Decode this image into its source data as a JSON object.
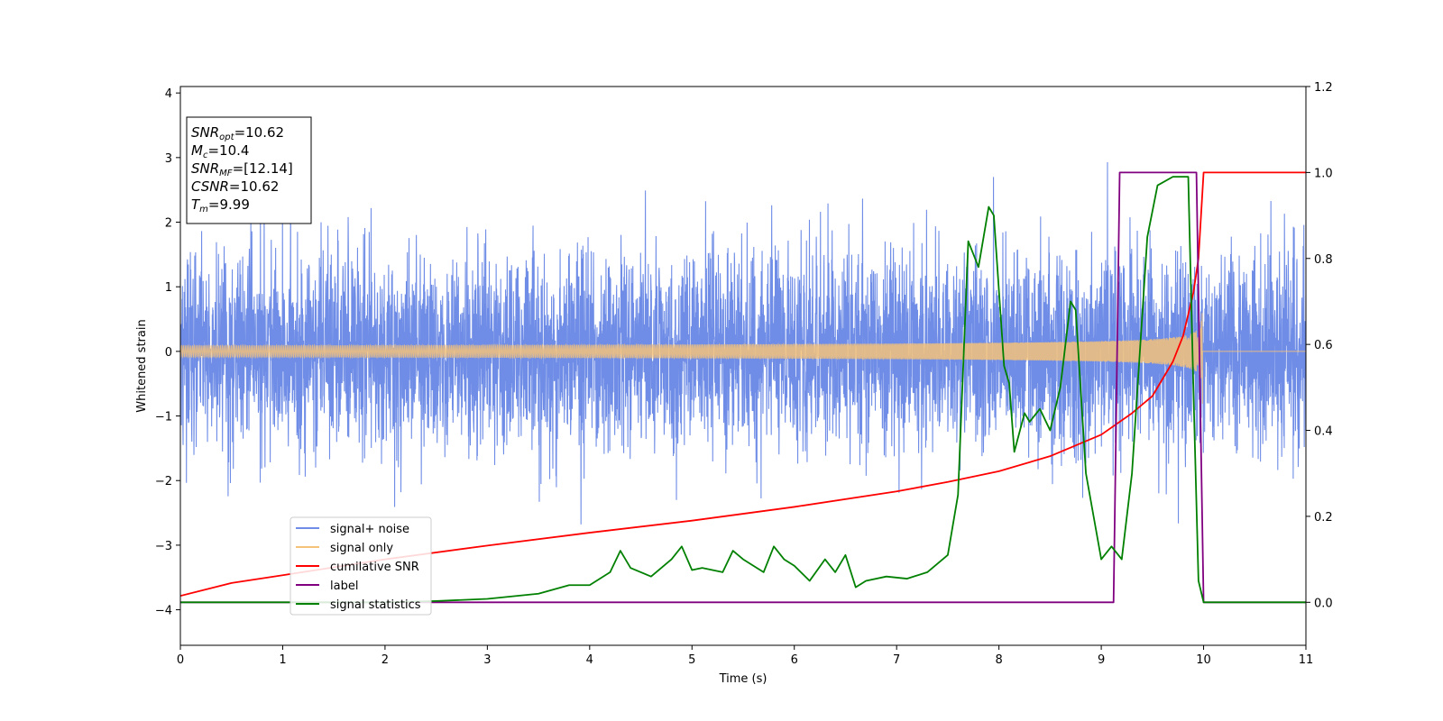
{
  "chart_data": {
    "type": "line",
    "title": "",
    "xlabel": "Time (s)",
    "ylabel": "Whitened strain",
    "y2label": "",
    "xlim": [
      0,
      11
    ],
    "ylim": [
      -4.55,
      4.1
    ],
    "y2lim": [
      -0.1,
      1.2
    ],
    "x_ticks": [
      0,
      1,
      2,
      3,
      4,
      5,
      6,
      7,
      8,
      9,
      10,
      11
    ],
    "y_ticks": [
      4,
      3,
      2,
      1,
      0,
      -1,
      -2,
      -3,
      -4
    ],
    "y_tick_labels": [
      "4",
      "3",
      "2",
      "1",
      "0",
      "−1",
      "−2",
      "−3",
      "−4"
    ],
    "y2_ticks": [
      1.2,
      1.0,
      0.8,
      0.6,
      0.4,
      0.2,
      0.0
    ],
    "y2_tick_labels": [
      "1.2",
      "1.0",
      "0.8",
      "0.6",
      "0.4",
      "0.2",
      "0.0"
    ],
    "grid": false,
    "legend_position": "lower-left",
    "info_box": {
      "lines": [
        {
          "sym": "SNR",
          "sub": "opt",
          "val": "=10.62"
        },
        {
          "sym": "M",
          "sub": "c",
          "val": "=10.4"
        },
        {
          "sym": "SNR",
          "sub": "MF",
          "val": "=[12.14]"
        },
        {
          "sym": "CSNR",
          "sub": "",
          "val": "=10.62"
        },
        {
          "sym": "T",
          "sub": "m",
          "val": "=9.99"
        }
      ]
    },
    "series": [
      {
        "name": "signal+ noise",
        "color": "#6f8de6",
        "axis": "left",
        "style": "noise",
        "sigma": 0.75,
        "range": [
          0,
          11
        ]
      },
      {
        "name": "signal only",
        "color": "#f5c27a",
        "axis": "left",
        "style": "chirp",
        "merger_time": 9.99,
        "peak_amplitude": 0.95
      },
      {
        "name": "cumilative SNR",
        "color": "#ff0000",
        "axis": "right",
        "x": [
          0,
          0.5,
          1,
          2,
          3,
          4,
          5,
          6,
          7,
          7.5,
          8,
          8.5,
          9,
          9.3,
          9.5,
          9.7,
          9.8,
          9.9,
          9.95,
          10.0,
          11.0
        ],
        "y": [
          0.015,
          0.045,
          0.063,
          0.1,
          0.132,
          0.162,
          0.19,
          0.222,
          0.258,
          0.28,
          0.305,
          0.34,
          0.39,
          0.44,
          0.48,
          0.56,
          0.62,
          0.72,
          0.8,
          1.0,
          1.0
        ]
      },
      {
        "name": "label",
        "color": "#800080",
        "axis": "right",
        "x": [
          0,
          9.12,
          9.18,
          9.93,
          10.0,
          11.0
        ],
        "y": [
          0,
          0,
          1,
          1,
          0,
          0
        ]
      },
      {
        "name": "signal statistics",
        "color": "#008000",
        "axis": "right",
        "x": [
          0,
          1.0,
          2.0,
          2.5,
          3.0,
          3.5,
          3.8,
          4.0,
          4.2,
          4.3,
          4.4,
          4.6,
          4.8,
          4.9,
          5.0,
          5.1,
          5.3,
          5.4,
          5.5,
          5.7,
          5.8,
          5.9,
          6.0,
          6.15,
          6.3,
          6.4,
          6.5,
          6.6,
          6.7,
          6.9,
          7.1,
          7.3,
          7.5,
          7.6,
          7.7,
          7.8,
          7.9,
          7.95,
          8.05,
          8.1,
          8.15,
          8.25,
          8.3,
          8.4,
          8.5,
          8.6,
          8.7,
          8.75,
          8.85,
          9.0,
          9.1,
          9.2,
          9.3,
          9.45,
          9.55,
          9.7,
          9.85,
          9.9,
          9.95,
          10.0,
          11.0
        ],
        "y": [
          0,
          0.0,
          0.0,
          0.003,
          0.008,
          0.02,
          0.04,
          0.04,
          0.07,
          0.12,
          0.08,
          0.06,
          0.1,
          0.13,
          0.075,
          0.08,
          0.07,
          0.12,
          0.1,
          0.07,
          0.13,
          0.1,
          0.085,
          0.05,
          0.1,
          0.07,
          0.11,
          0.035,
          0.05,
          0.06,
          0.055,
          0.07,
          0.11,
          0.25,
          0.84,
          0.78,
          0.92,
          0.9,
          0.55,
          0.51,
          0.35,
          0.44,
          0.42,
          0.45,
          0.4,
          0.5,
          0.7,
          0.68,
          0.3,
          0.1,
          0.13,
          0.1,
          0.3,
          0.85,
          0.97,
          0.99,
          0.99,
          0.5,
          0.05,
          0.0,
          0.0
        ]
      }
    ]
  }
}
